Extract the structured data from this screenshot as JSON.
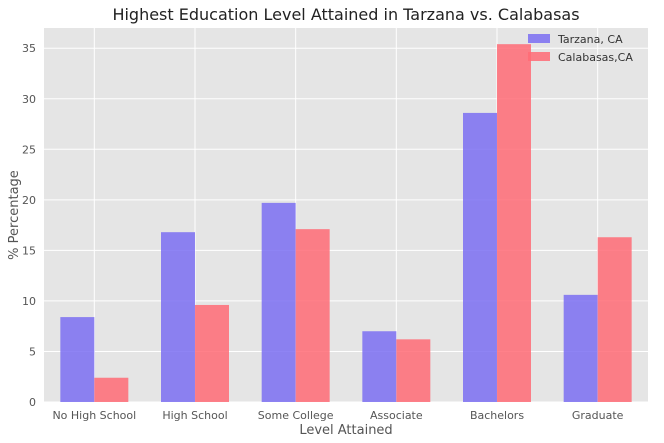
{
  "chart_data": {
    "type": "bar",
    "title": "Highest Education Level Attained in Tarzana vs. Calabasas",
    "xlabel": "Level Attained",
    "ylabel": "% Percentage",
    "categories": [
      "No High School",
      "High School",
      "Some College",
      "Associate",
      "Bachelors",
      "Graduate"
    ],
    "series": [
      {
        "name": "Tarzana, CA",
        "color": "#7b6ff2",
        "values": [
          8.4,
          16.8,
          19.7,
          7.0,
          28.6,
          10.6
        ]
      },
      {
        "name": "Calabasas,CA",
        "color": "#ff6b75",
        "values": [
          2.4,
          9.6,
          17.1,
          6.2,
          35.4,
          16.3
        ]
      }
    ],
    "ylim": [
      0,
      37
    ],
    "yticks": [
      "0",
      "5",
      "10",
      "15",
      "20",
      "25",
      "30",
      "35"
    ],
    "grid": true,
    "legend_position": "top-right",
    "background": "#e5e5e5"
  }
}
